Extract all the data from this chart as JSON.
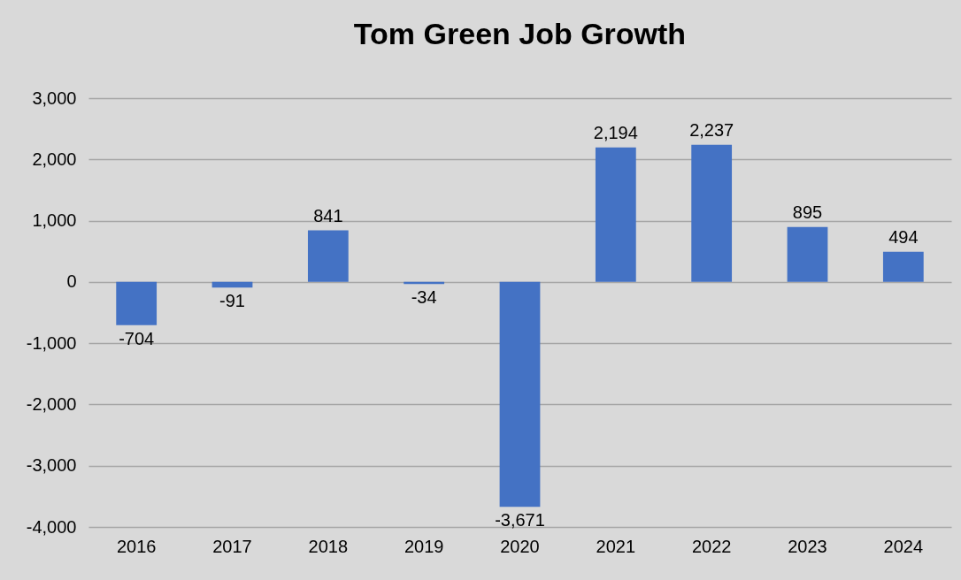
{
  "chart_data": {
    "type": "bar",
    "title": "Tom Green Job Growth",
    "categories": [
      "2016",
      "2017",
      "2018",
      "2019",
      "2020",
      "2021",
      "2022",
      "2023",
      "2024"
    ],
    "values": [
      -704,
      -91,
      841,
      -34,
      -3671,
      2194,
      2237,
      895,
      494
    ],
    "value_labels": [
      "-704",
      "-91",
      "841",
      "-34",
      "-3,671",
      "2,194",
      "2,237",
      "895",
      "494"
    ],
    "color": "#4472c4",
    "ylim": [
      -4000,
      3000
    ],
    "yticks": [
      {
        "value": -4000,
        "label": "-4,000"
      },
      {
        "value": -3000,
        "label": "-3,000"
      },
      {
        "value": -2000,
        "label": "-2,000"
      },
      {
        "value": -1000,
        "label": "-1,000"
      },
      {
        "value": 0,
        "label": "0"
      },
      {
        "value": 1000,
        "label": "1,000"
      },
      {
        "value": 2000,
        "label": "2,000"
      },
      {
        "value": 3000,
        "label": "3,000"
      }
    ],
    "grid": "y"
  }
}
